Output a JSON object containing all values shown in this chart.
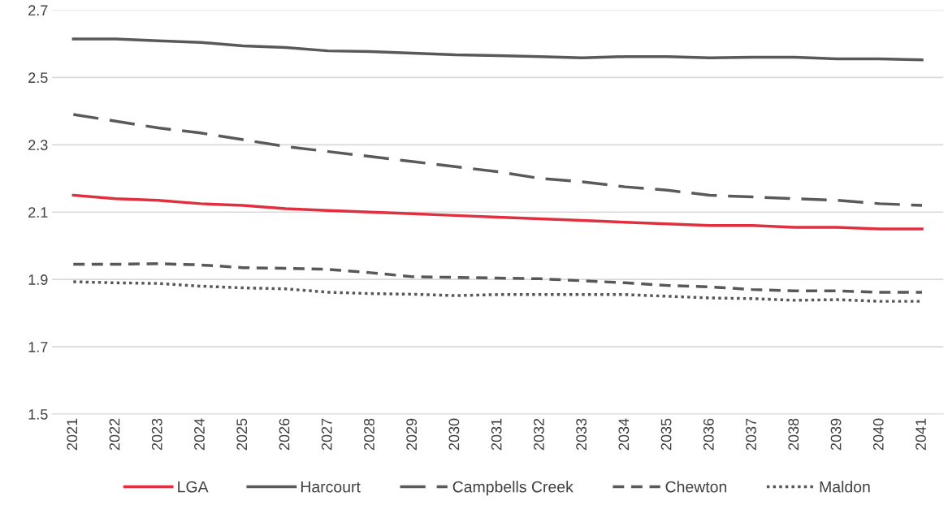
{
  "chart_data": {
    "type": "line",
    "categories": [
      "2021",
      "2022",
      "2023",
      "2024",
      "2025",
      "2026",
      "2027",
      "2028",
      "2029",
      "2030",
      "2031",
      "2032",
      "2033",
      "2034",
      "2035",
      "2036",
      "2037",
      "2038",
      "2039",
      "2040",
      "2041"
    ],
    "series": [
      {
        "name": "LGA",
        "color": "#e0303f",
        "line_style": "solid",
        "values": [
          2.15,
          2.14,
          2.135,
          2.125,
          2.12,
          2.11,
          2.105,
          2.1,
          2.095,
          2.09,
          2.085,
          2.08,
          2.075,
          2.07,
          2.065,
          2.06,
          2.06,
          2.055,
          2.055,
          2.05,
          2.05
        ]
      },
      {
        "name": "Harcourt",
        "color": "#595959",
        "line_style": "solid",
        "values": [
          2.614,
          2.614,
          2.609,
          2.604,
          2.594,
          2.589,
          2.579,
          2.577,
          2.572,
          2.567,
          2.565,
          2.562,
          2.558,
          2.562,
          2.562,
          2.558,
          2.56,
          2.56,
          2.555,
          2.555,
          2.552
        ]
      },
      {
        "name": "Campbells Creek",
        "color": "#5a5a5a",
        "line_style": "longdash",
        "values": [
          2.39,
          2.37,
          2.35,
          2.335,
          2.315,
          2.295,
          2.28,
          2.265,
          2.25,
          2.235,
          2.22,
          2.2,
          2.19,
          2.175,
          2.165,
          2.15,
          2.145,
          2.14,
          2.135,
          2.125,
          2.12
        ]
      },
      {
        "name": "Chewton",
        "color": "#585858",
        "line_style": "dashed",
        "values": [
          1.945,
          1.945,
          1.947,
          1.943,
          1.935,
          1.933,
          1.93,
          1.92,
          1.908,
          1.906,
          1.904,
          1.902,
          1.896,
          1.89,
          1.882,
          1.878,
          1.87,
          1.866,
          1.866,
          1.862,
          1.862
        ]
      },
      {
        "name": "Maldon",
        "color": "#575757",
        "line_style": "dotted",
        "values": [
          1.893,
          1.89,
          1.888,
          1.88,
          1.875,
          1.872,
          1.862,
          1.858,
          1.856,
          1.852,
          1.855,
          1.855,
          1.855,
          1.855,
          1.85,
          1.845,
          1.843,
          1.838,
          1.84,
          1.835,
          1.835
        ]
      }
    ],
    "ylim": [
      1.5,
      2.7
    ],
    "yticks": [
      {
        "value": 1.5,
        "label": "1.5"
      },
      {
        "value": 1.7,
        "label": "1.7"
      },
      {
        "value": 1.9,
        "label": "1.9"
      },
      {
        "value": 2.1,
        "label": "2.1"
      },
      {
        "value": 2.3,
        "label": "2.3"
      },
      {
        "value": 2.5,
        "label": "2.5"
      },
      {
        "value": 2.7,
        "label": "2.7"
      }
    ],
    "grid": "y",
    "legend": "bottom"
  }
}
